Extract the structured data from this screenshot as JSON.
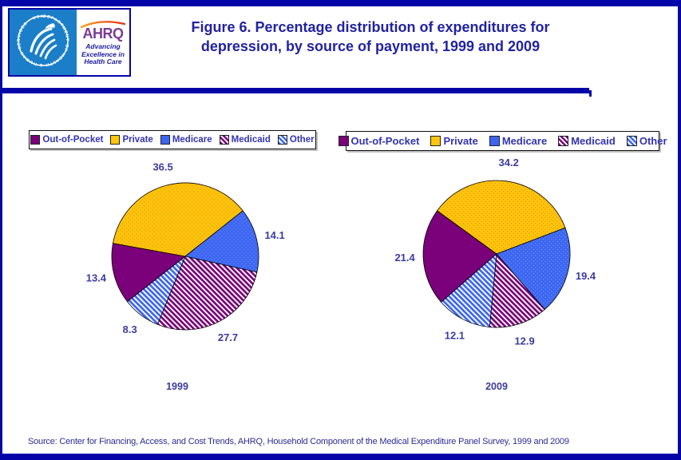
{
  "page": {
    "title_line1": "Figure 6. Percentage distribution of expenditures for",
    "title_line2": "depression, by source of payment, 1999 and 2009",
    "source": "Source: Center for Financing, Access, and Cost Trends, AHRQ, Household Component of the Medical Expenditure Panel Survey,  1999 and 2009"
  },
  "logo": {
    "ahrq_text": "AHRQ",
    "tagline_line1": "Advancing",
    "tagline_line2": "Excellence in",
    "tagline_line3": "Health Care",
    "hhs_ring_text": "DEPARTMENT OF HEALTH & HUMAN SERVICES · USA"
  },
  "legend": {
    "items": [
      {
        "label": "Out-of-Pocket",
        "swatch": "out-of-pocket"
      },
      {
        "label": "Private",
        "swatch": "private"
      },
      {
        "label": "Medicare",
        "swatch": "medicare"
      },
      {
        "label": "Medicaid",
        "swatch": "medicaid"
      },
      {
        "label": "Other",
        "swatch": "other"
      }
    ]
  },
  "colors": {
    "navy": "#0404A8",
    "title_text": "#2222A2",
    "label_text": "#3C3CA0",
    "purple": "#7A017A",
    "yellow": "#FFC60D",
    "yellow_dot": "#ED9D00",
    "blue": "#3C66F2",
    "blue_dot": "#6C8CF8",
    "hatch_white": "#FFFFFF",
    "hhs_blue": "#1B7EC8",
    "ahrq_purple": "#7A3B94",
    "arc_orange_start": "#F9A11B",
    "arc_orange_end": "#E4301F"
  },
  "chart_data": [
    {
      "type": "pie",
      "title": "1999",
      "clockwise": true,
      "start_angle_deg_cw_from_12": 232,
      "categories": [
        "Out-of-Pocket",
        "Private",
        "Medicare",
        "Medicaid",
        "Other"
      ],
      "values": [
        13.4,
        36.5,
        14.1,
        27.7,
        8.3
      ],
      "fills": [
        "out-of-pocket",
        "private",
        "medicare",
        "medicaid",
        "other"
      ],
      "legend_position": "top",
      "data_labels": "outside"
    },
    {
      "type": "pie",
      "title": "2009",
      "clockwise": true,
      "start_angle_deg_cw_from_12": 229,
      "categories": [
        "Out-of-Pocket",
        "Private",
        "Medicare",
        "Medicaid",
        "Other"
      ],
      "values": [
        21.4,
        34.2,
        19.4,
        12.9,
        12.1
      ],
      "fills": [
        "out-of-pocket",
        "private",
        "medicare",
        "medicaid",
        "other"
      ],
      "legend_position": "top",
      "data_labels": "outside"
    }
  ]
}
